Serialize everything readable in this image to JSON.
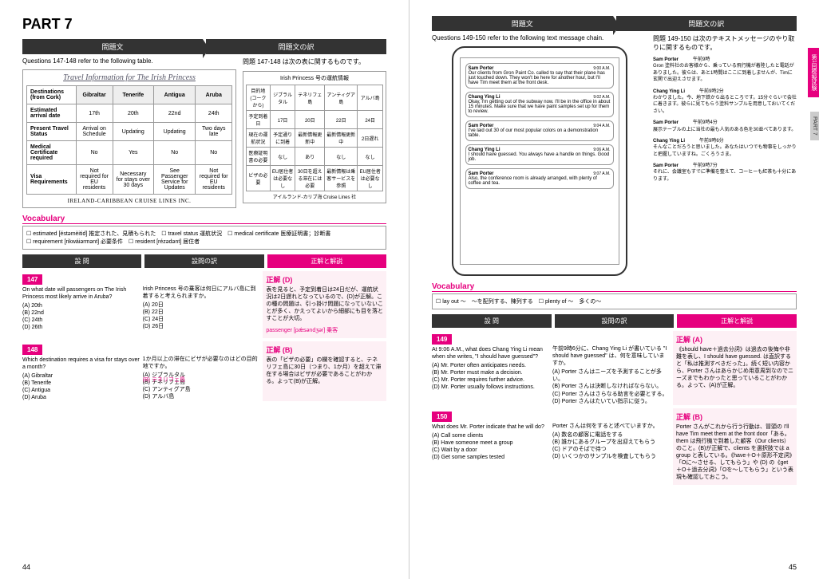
{
  "part": "PART 7",
  "h1": "問題文",
  "h2": "問題文の訳",
  "q1": "Questions 147-148 refer to the following table.",
  "q1j": "問題 147-148 は次の表に関するものです。",
  "travel": {
    "title": "Travel Information for The Irish Princess",
    "cols": [
      "Gibraltar",
      "Tenerife",
      "Antigua",
      "Aruba"
    ],
    "rows": [
      [
        "Destinations (from Cork)",
        "Gibraltar",
        "Tenerife",
        "Antigua",
        "Aruba"
      ],
      [
        "Estimated arrival date",
        "17th",
        "20th",
        "22nd",
        "24th"
      ],
      [
        "Present Travel Status",
        "Arrival on Schedule",
        "Updating",
        "Updating",
        "Two days late"
      ],
      [
        "Medical Certificate required",
        "No",
        "Yes",
        "No",
        "No"
      ],
      [
        "Visa Requirements",
        "Not required for EU residents",
        "Necessary for stays over 30 days",
        "See Passenger Service for Updates",
        "Not required for EU residents"
      ]
    ],
    "company": "IRELAND-CARIBBEAN CRUISE LINES INC."
  },
  "jpbox": {
    "title": "Irish Princess 号の運航情報",
    "rows": [
      [
        "目的地(コークから)",
        "ジブラルタル",
        "テネリフェ島",
        "アンティグア島",
        "アルバ島"
      ],
      [
        "予定到着日",
        "17日",
        "20日",
        "22日",
        "24日"
      ],
      [
        "現在の運航状況",
        "予定通りに到着",
        "最新情報更新中",
        "最新情報更新中",
        "2日遅れ"
      ],
      [
        "医療証明書の必要",
        "なし",
        "あり",
        "なし",
        "なし"
      ],
      [
        "ビザの必要",
        "EU居住者は必要なし",
        "30日を超える滞在には必要",
        "最新情報は乗客サービスを参照",
        "EU居住者は必要なし"
      ]
    ],
    "company": "アイルランド-カリブ海 Cruise Lines 社"
  },
  "vocab1": "☐ estimated [éstəmèitid] 推定された、見積もられた　☐ travel status 運航状況　☐ medical certificate 医療証明書；診断書\n☐ requirement [rikwáiərmənt] 必要条件　☐ resident [rézədənt] 居住者",
  "sh1": "設 問",
  "sh2": "設問の訳",
  "sh3": "正解と解説",
  "q147": {
    "n": "147",
    "q": "On what date will passengers on The Irish Princess most likely arrive in Aruba?",
    "opts": "(A) 20th\n(B) 22nd\n(C) 24th\n(D) 26th",
    "qj": "Irish Princess 号の乗客は何日にアルバ島に到着すると考えられますか。",
    "optsj": "(A) 20日\n(B) 22日\n(C) 24日\n(D) 26日",
    "ans": "正解 (D)",
    "exp": "表を見ると、予定到着日は24日だが、運航状況は2日遅れとなっているので、(D)が正解。この種の問題は、引っ掛け問題になっていないことが多く、かえってよいから細部にも目を落とすことが大切。",
    "pass": "passenger [pǽsəndʒər] 乗客"
  },
  "q148": {
    "n": "148",
    "q": "Which destination requires a visa for stays over a month?",
    "opts": "(A) Gibraltar\n(B) Tenerife\n(C) Antigua\n(D) Aruba",
    "qj": "1か月以上の滞在にビザが必要なのはどの目的地ですか。",
    "optsj": "(A) ジブラルタル\n(B) テネリフェ島\n(C) アンティグア島\n(D) アルバ島",
    "ans": "正解 (B)",
    "exp": "表の「ビザの必要」の欄を確認すると、テネリフェ島に30日（つまり、1か月）を超えて滞在する場合はビザが必要であることがわかる。よって(B)が正解。"
  },
  "q2": "Questions 149-150 refer to the following text message chain.",
  "q2j": "問題 149-150 は次のテキストメッセージのやり取りに関するものです。",
  "msgs": [
    {
      "n": "Sam Porter",
      "t": "9:00 A.M.",
      "b": "Our clients from Gron Paint Co. called to say that their plane has just touched down. They won't be here for another hour, but I'll have Tim meet them at the front desk."
    },
    {
      "n": "Chang Ying Li",
      "t": "9:02 A.M.",
      "b": "Okay, I'm getting out of the subway now. I'll be in the office in about 15 minutes. Make sure that we have paint samples set up for them to review."
    },
    {
      "n": "Sam Porter",
      "t": "9:04 A.M.",
      "b": "I've laid out 30 of our most popular colors on a demonstration table."
    },
    {
      "n": "Chang Ying Li",
      "t": "9:06 A.M.",
      "b": "I should have guessed. You always have a handle on things. Good job."
    },
    {
      "n": "Sam Porter",
      "t": "9:07 A.M.",
      "b": "Also, the conference room is already arranged, with plenty of coffee and tea."
    }
  ],
  "jpmsgs": [
    {
      "n": "Sam Porter",
      "t": "午前9時",
      "b": "Gron 塗料社のお客様から、乗っている飛行機が着陸したと電話がありました。彼らは、あと1時間はここに到着しませんが、Timに玄関で出迎えさせます。"
    },
    {
      "n": "Chang Ying Li",
      "t": "午前9時2分",
      "b": "わかりました。今、地下鉄から出るところです。15分ぐらいで会社に着きます。彼らに見てもらう塗料サンプルを用意しておいてください。"
    },
    {
      "n": "Sam Porter",
      "t": "午前9時4分",
      "b": "展示テーブルの上に当社の最も人気のある色を30並べてあります。"
    },
    {
      "n": "Chang Ying Li",
      "t": "午前9時6分",
      "b": "そんなことだろうと思いました。あなたはいつでも物事をしっかりと把握していますね。ごくろうさま。"
    },
    {
      "n": "Sam Porter",
      "t": "午前9時7分",
      "b": "それに、会議室もすでに準備を整えて、コーヒーも紅茶も十分にあります。"
    }
  ],
  "vocab2": "☐ lay out ～　～を配列する、陳列する　☐ plenty of ～　多くの～",
  "q149": {
    "n": "149",
    "q": "At 9:06 A.M., what does Chang Ying Li mean when she writes, \"I should have guessed\"?",
    "opts": "(A) Mr. Porter often anticipates needs.\n(B) Mr. Porter must make a decision.\n(C) Mr. Porter requires further advice.\n(D) Mr. Porter usually follows instructions.",
    "qj": "午前9時6分に、Chang Ying Li が書いている \"I should have guessed\" は、何を意味していますか。",
    "optsj": "(A) Porter さんはニーズを予測することが多い。\n(B) Porter さんは決断しなければならない。\n(C) Porter さんはさらなる助言を必要とする。\n(D) Porter さんはたいてい指示に従う。",
    "ans": "正解 (A)",
    "exp": "《should have＋過去分詞》は過去の後悔や非難を表し、I should have guessed. は直訳すると「私は推測すべきだった」。続く短い内容から、Porter さんはあらかじめ用意周到なのでニーズまでもわかったと思っていることがわかる。よって、(A)が正解。"
  },
  "q150": {
    "n": "150",
    "q": "What does Mr. Porter indicate that he will do?",
    "opts": "(A) Call some clients\n(B) Have someone meet a group\n(C) Wait by a door\n(D) Get some samples tested",
    "qj": "Porter さんは何をすると述べていますか。",
    "optsj": "(A) 数名の顧客に電話をする\n(B) 誰かにあるグループを出迎えてもらう\n(C) ドアのそばで待つ\n(D) いくつかのサンプルを検査してもらう",
    "ans": "正解 (B)",
    "exp": "Porter さんがこれから行う行動は、冒頭の I'll have Tim meet them at the front door「ある。them は飛行機で到着した顧客（Our clients）のこと。(B)が正解で、clients を選択肢では a group と表している。《have＋O＋原形不定詞》「Oに～させる、してもらう」や (D) の《get＋O＋過去分詞》「Oを～してもらう」という表現も確認しておこう。"
  },
  "pl": "44",
  "pr": "45",
  "tab1": "第1回模擬試験",
  "tab2": "PART 7"
}
